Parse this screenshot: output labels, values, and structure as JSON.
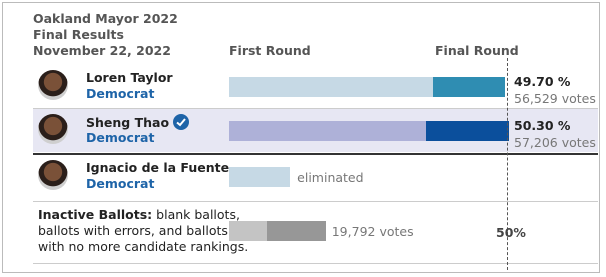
{
  "chart_data": {
    "type": "bar",
    "title": "Oakland Mayor 2022",
    "subtitle": "Final Results",
    "date": "November 22, 2022",
    "columns": [
      "First Round",
      "Final Round"
    ],
    "xlim": [
      0,
      50
    ],
    "xticks": [
      {
        "value": 50,
        "label": "50%"
      }
    ],
    "rows": [
      {
        "name": "Loren Taylor",
        "party": "Democrat",
        "first_round": 36.7,
        "final_round": 49.7,
        "value_label": "49.70 %",
        "votes_label": "56,529 votes",
        "colors": [
          "#c6d9e5",
          "#2f8db2"
        ]
      },
      {
        "name": "Sheng Thao",
        "party": "Democrat",
        "first_round": 35.4,
        "final_round": 50.3,
        "value_label": "50.30 %",
        "votes_label": "57,206 votes",
        "colors": [
          "#aeb1d8",
          "#0b4f9c"
        ],
        "winner": true
      },
      {
        "name": "Ignacio de la Fuente",
        "party": "Democrat",
        "first_round": 11.0,
        "final_round": null,
        "status": "eliminated",
        "colors": [
          "#c6d9e5"
        ]
      },
      {
        "heading": "Inactive Ballots:",
        "lines": [
          "blank ballots,",
          "ballots with errors, and  ballots",
          "with no more candidate rankings."
        ],
        "first_round": 6.8,
        "final_round": 17.4,
        "votes_label": "19,792 votes",
        "colors": [
          "#c4c4c4",
          "#979797"
        ]
      }
    ]
  }
}
